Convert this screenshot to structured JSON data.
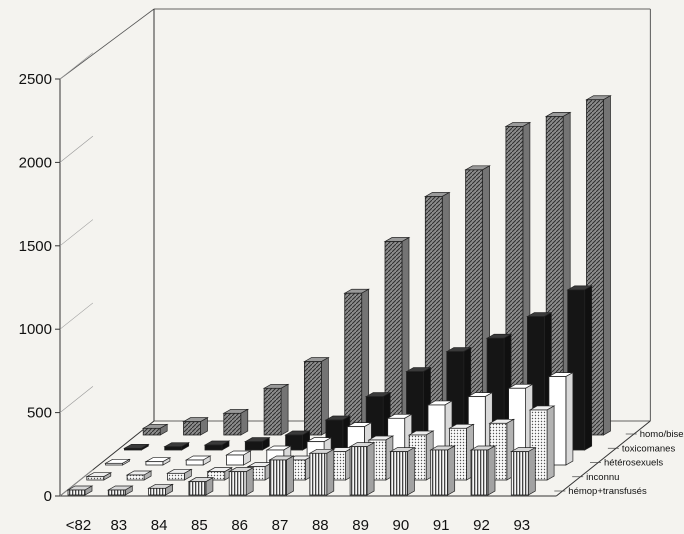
{
  "chart_data": {
    "type": "bar",
    "categories": [
      "<82",
      "83",
      "84",
      "85",
      "86",
      "87",
      "88",
      "89",
      "90",
      "91",
      "92",
      "93"
    ],
    "ylim": [
      0,
      2500
    ],
    "yticks": [
      0,
      500,
      1000,
      1500,
      2000,
      2500
    ],
    "ytick_labels": [
      "0",
      "500",
      "1000",
      "1500",
      "2000",
      "2500"
    ],
    "grid": false,
    "legend_position": "right, along depth axis",
    "series": [
      {
        "name": "hémop+transfusés",
        "fill": "vertical-stripes",
        "color": "#d8d8d8",
        "values": [
          30,
          30,
          40,
          80,
          140,
          210,
          250,
          290,
          260,
          270,
          270,
          260
        ]
      },
      {
        "name": "inconnu",
        "fill": "dots",
        "color": "#eeeeee",
        "values": [
          20,
          30,
          40,
          50,
          80,
          120,
          170,
          240,
          270,
          310,
          340,
          420
        ]
      },
      {
        "name": "hétérosexuels",
        "fill": "plain",
        "color": "#ffffff",
        "values": [
          10,
          20,
          30,
          60,
          90,
          140,
          230,
          280,
          360,
          410,
          460,
          530
        ]
      },
      {
        "name": "toxicomanes",
        "fill": "solid",
        "color": "#151515",
        "values": [
          10,
          20,
          30,
          50,
          90,
          180,
          320,
          470,
          590,
          670,
          800,
          960
        ]
      },
      {
        "name": "homo/bisex",
        "fill": "diagonal-hatch",
        "color": "#9a9a9a",
        "values": [
          40,
          80,
          130,
          280,
          440,
          850,
          1160,
          1430,
          1590,
          1850,
          1910,
          2010
        ]
      }
    ]
  }
}
